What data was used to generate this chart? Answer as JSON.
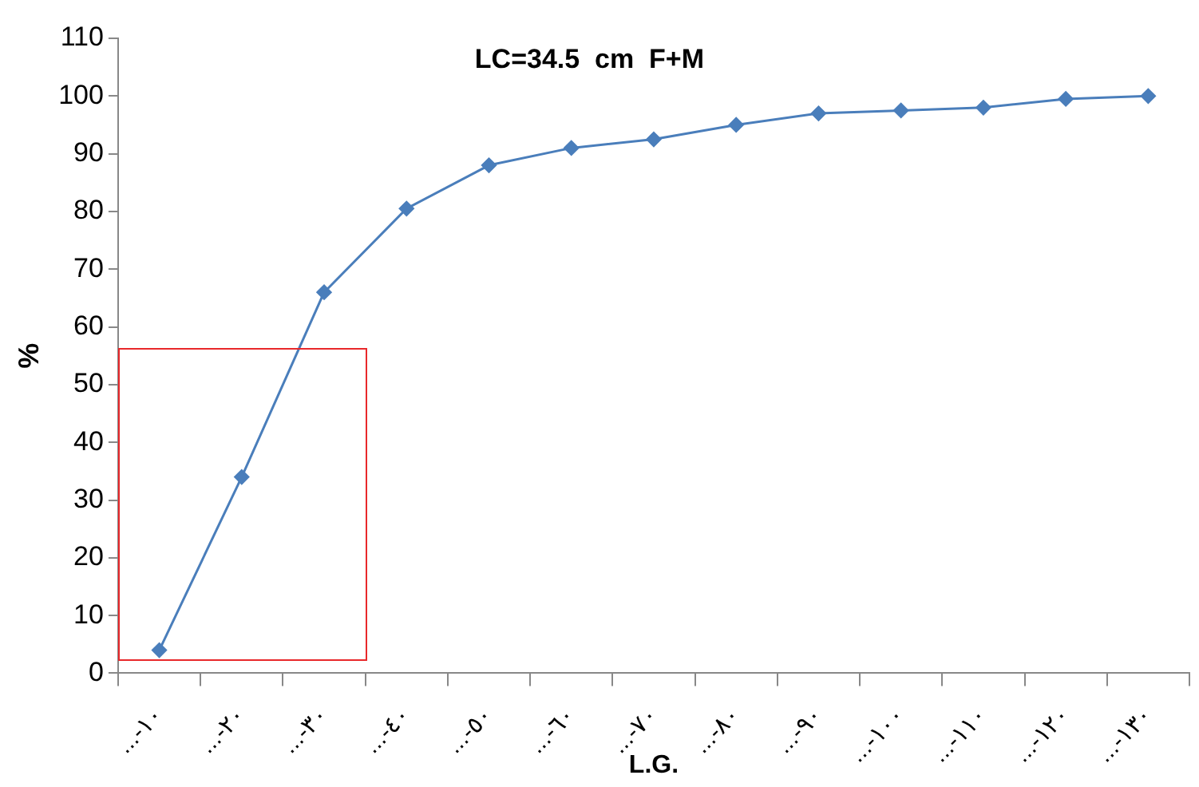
{
  "chart_data": {
    "type": "line",
    "title": "LC=34.5  cm  F+M",
    "xlabel": "L.G.",
    "ylabel": "%",
    "categories": [
      "...-١٠",
      "...-٢٠",
      "...-٣٠",
      "...-٤٠",
      "...-٥٠",
      "...-٦٠",
      "...-٧٠",
      "...-٨٠",
      "...-٩٠",
      "...-١٠٠",
      "...-١١٠",
      "...-١٢٠",
      "...-١٣٠"
    ],
    "series": [
      {
        "color": "#4a7ebb",
        "values": [
          4,
          34,
          66,
          80.5,
          88,
          91,
          92.5,
          95,
          97,
          97.5,
          98,
          99.5,
          100
        ]
      }
    ],
    "ylim": [
      0,
      110
    ],
    "yticks": [
      0,
      10,
      20,
      30,
      40,
      50,
      60,
      70,
      80,
      90,
      100,
      110
    ],
    "grid": false,
    "legend": false,
    "marker": "diamond",
    "line_style": "solid"
  }
}
